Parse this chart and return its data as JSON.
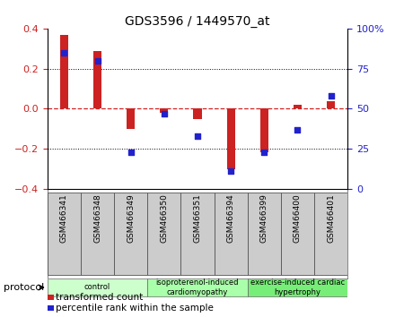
{
  "title": "GDS3596 / 1449570_at",
  "samples": [
    "GSM466341",
    "GSM466348",
    "GSM466349",
    "GSM466350",
    "GSM466351",
    "GSM466394",
    "GSM466399",
    "GSM466400",
    "GSM466401"
  ],
  "transformed_count": [
    0.37,
    0.29,
    -0.1,
    -0.02,
    -0.05,
    -0.3,
    -0.215,
    0.02,
    0.04
  ],
  "percentile_rank": [
    85,
    80,
    23,
    47,
    33,
    11,
    23,
    37,
    58
  ],
  "groups": [
    {
      "label": "control",
      "start": 0,
      "end": 2,
      "color": "#ccffcc"
    },
    {
      "label": "isoproterenol-induced\ncardiomyopathy",
      "start": 3,
      "end": 5,
      "color": "#aaffaa"
    },
    {
      "label": "exercise-induced cardiac\nhypertrophy",
      "start": 6,
      "end": 8,
      "color": "#77ee77"
    }
  ],
  "bar_color": "#cc2222",
  "dot_color": "#2222cc",
  "ylim_left": [
    -0.4,
    0.4
  ],
  "ylim_right": [
    0,
    100
  ],
  "yticks_left": [
    -0.4,
    -0.2,
    0.0,
    0.2,
    0.4
  ],
  "yticks_right": [
    0,
    25,
    50,
    75,
    100
  ],
  "background_color": "#ffffff",
  "plot_bg": "#ffffff",
  "label_bg": "#cccccc",
  "bar_width": 0.25
}
